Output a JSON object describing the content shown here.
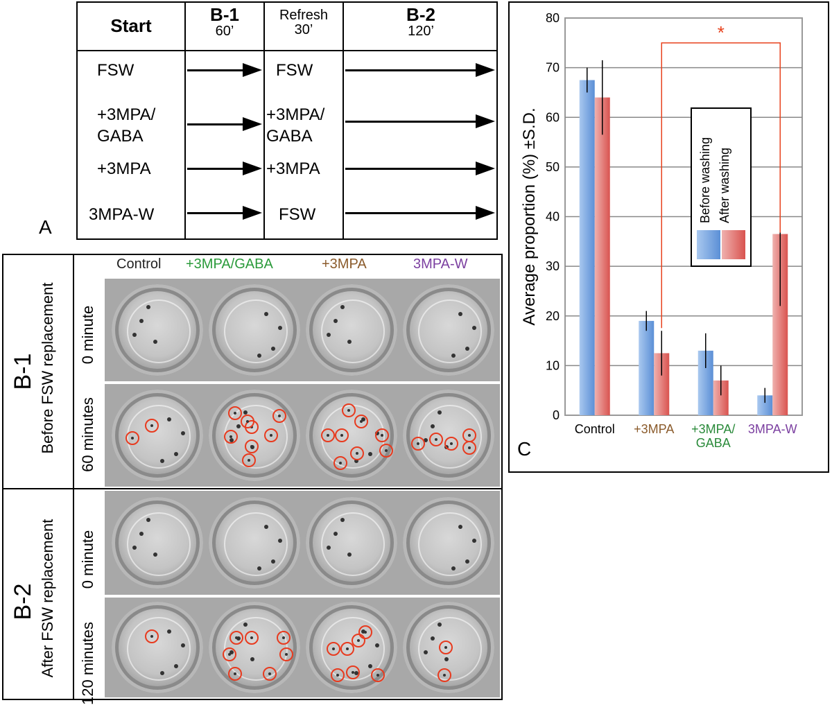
{
  "panel_a": {
    "label": "A",
    "headers": [
      {
        "title": "Start",
        "sub": ""
      },
      {
        "title": "B-1",
        "sub": "60’"
      },
      {
        "title": "Refresh",
        "sub": "30’"
      },
      {
        "title": "B-2",
        "sub": "120’"
      }
    ],
    "rows": [
      {
        "start": "FSW",
        "refresh": "FSW"
      },
      {
        "start": "+3MPA/ GABA",
        "refresh": "+3MPA/ GABA"
      },
      {
        "start": "+3MPA",
        "refresh": "+3MPA"
      },
      {
        "start": "3MPA-W",
        "refresh": "FSW"
      }
    ]
  },
  "panel_b": {
    "conditions": [
      {
        "label": "Control",
        "color": "#222222"
      },
      {
        "label": "+3MPA/GABA",
        "color": "#2a9a3a"
      },
      {
        "label": "+3MPA",
        "color": "#8a5a2a"
      },
      {
        "label": "3MPA-W",
        "color": "#7b3fa0"
      }
    ],
    "sections": [
      {
        "label": "B-1",
        "sublabel": "Before FSW replacement",
        "times": [
          "0 minute",
          "60 minutes"
        ]
      },
      {
        "label": "B-2",
        "sublabel": "After FSW replacement",
        "times": [
          "0 minute",
          "120 minutes"
        ]
      }
    ]
  },
  "panel_c": {
    "label": "C",
    "significance_marker": "*"
  },
  "chart_data": {
    "type": "bar",
    "title": "",
    "ylabel": "Average proportion (%) ±S.D.",
    "xlabel": "",
    "ylim": [
      0,
      80
    ],
    "yticks": [
      0,
      10,
      20,
      30,
      40,
      50,
      60,
      70,
      80
    ],
    "categories": [
      {
        "label": "Control",
        "color": "#000000"
      },
      {
        "label": "+3MPA",
        "color": "#8a5a2a"
      },
      {
        "label": "+3MPA/ GABA",
        "color": "#2a8a3a"
      },
      {
        "label": "3MPA-W",
        "color": "#7b3fa0"
      }
    ],
    "series": [
      {
        "name": "Before washing",
        "color": "#5b8fd6",
        "values": [
          67.5,
          19,
          13,
          4
        ],
        "sd": [
          2.5,
          2,
          3.5,
          1.5
        ]
      },
      {
        "name": "After washing",
        "color": "#d9534f",
        "values": [
          64,
          12.5,
          7,
          36.5
        ],
        "sd": [
          7.5,
          4.5,
          3,
          14.5
        ]
      }
    ],
    "legend": {
      "position": "right",
      "entries": [
        "Before washing",
        "After washing"
      ]
    },
    "significance": {
      "between": [
        "+3MPA",
        "3MPA-W"
      ],
      "series": "After washing",
      "marker": "*"
    },
    "grid": true
  }
}
